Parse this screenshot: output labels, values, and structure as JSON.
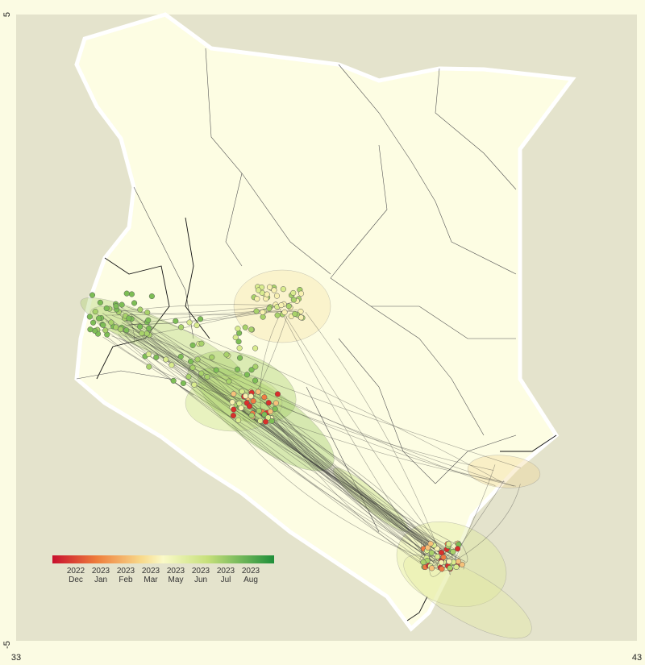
{
  "map": {
    "y_ticks": [
      "5",
      "-5"
    ],
    "x_ticks": [
      "33",
      "43"
    ],
    "legend": [
      {
        "year": "2022",
        "month": "Dec"
      },
      {
        "year": "2023",
        "month": "Jan"
      },
      {
        "year": "2023",
        "month": "Feb"
      },
      {
        "year": "2023",
        "month": "Mar"
      },
      {
        "year": "2023",
        "month": "May"
      },
      {
        "year": "2023",
        "month": "Jun"
      },
      {
        "year": "2023",
        "month": "Jul"
      },
      {
        "year": "2023",
        "month": "Aug"
      }
    ]
  }
}
